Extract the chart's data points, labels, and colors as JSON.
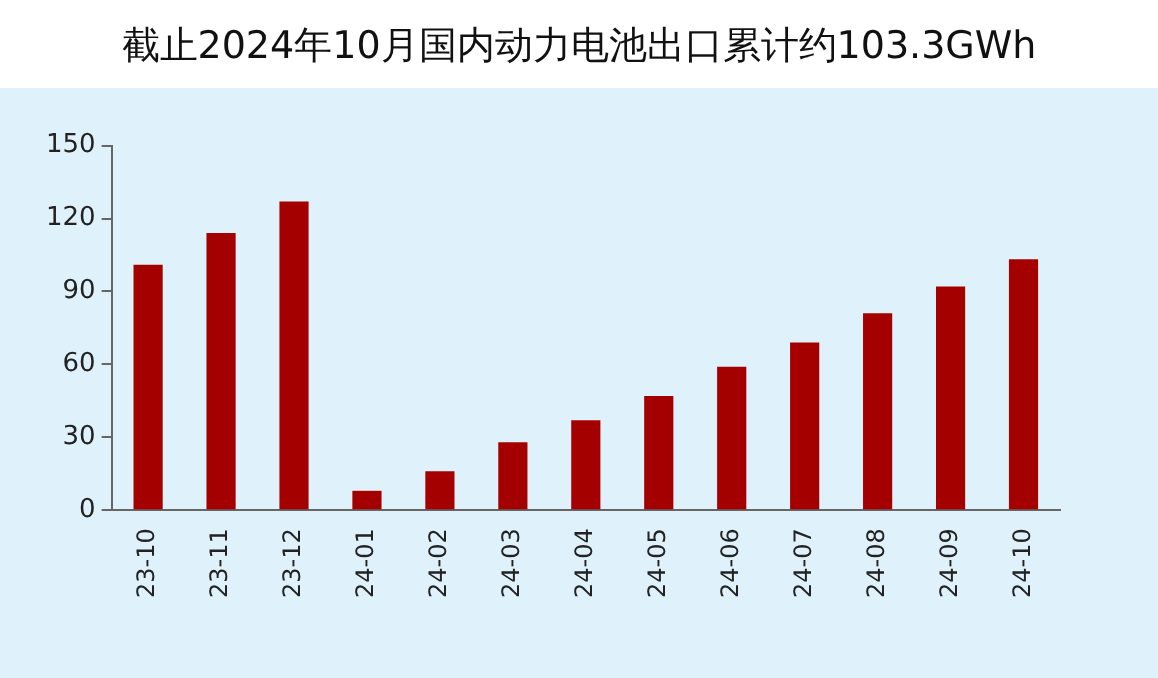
{
  "chart_data": {
    "type": "bar",
    "title": "截止2024年10月国内动力电池出口累计约103.3GWh",
    "categories": [
      "23-10",
      "23-11",
      "23-12",
      "24-01",
      "24-02",
      "24-03",
      "24-04",
      "24-05",
      "24-06",
      "24-07",
      "24-08",
      "24-09",
      "24-10"
    ],
    "values": [
      101,
      114,
      127,
      8,
      16,
      28,
      37,
      47,
      59,
      69,
      81,
      92,
      103.3
    ],
    "color": "#a50000",
    "ylim": [
      0,
      150
    ],
    "yticks": [
      0,
      30,
      60,
      90,
      120,
      150
    ],
    "grid": false,
    "legend": false
  }
}
